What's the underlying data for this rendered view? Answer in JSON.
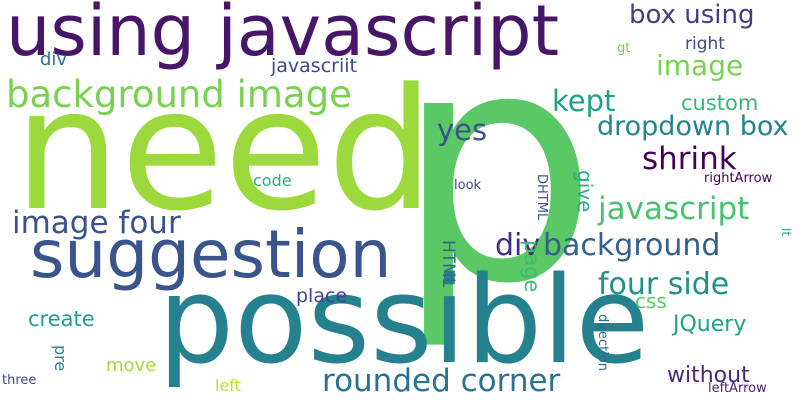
{
  "words": [
    {
      "text": "p",
      "color": "#5ac864"
    },
    {
      "text": "need",
      "color": "#9bd93c"
    },
    {
      "text": "possible",
      "color": "#26818e"
    },
    {
      "text": "using javascript",
      "color": "#481668"
    },
    {
      "text": "suggestion",
      "color": "#3a548c"
    },
    {
      "text": "background image",
      "color": "#7ad151"
    },
    {
      "text": "rounded corner",
      "color": "#2c728e"
    },
    {
      "text": "dropdown box",
      "color": "#25858e"
    },
    {
      "text": "background",
      "color": "#34608d"
    },
    {
      "text": "image four",
      "color": "#3b528b"
    },
    {
      "text": "javascript",
      "color": "#4ac16d"
    },
    {
      "text": "four side",
      "color": "#21918c"
    },
    {
      "text": "shrink",
      "color": "#440154"
    },
    {
      "text": "div",
      "color": "#472d7b"
    },
    {
      "text": "box using",
      "color": "#433d84"
    },
    {
      "text": "image",
      "color": "#7ad151"
    },
    {
      "text": "kept",
      "color": "#1fa088"
    },
    {
      "text": "yes",
      "color": "#3b528b"
    },
    {
      "text": "JQuery",
      "color": "#1fa188"
    },
    {
      "text": "custom",
      "color": "#35b779"
    },
    {
      "text": "css",
      "color": "#5ec962"
    },
    {
      "text": "create",
      "color": "#1f9e89"
    },
    {
      "text": "without",
      "color": "#482878"
    },
    {
      "text": "page",
      "color": "#3dbc74"
    },
    {
      "text": "give",
      "color": "#2ab07f"
    },
    {
      "text": "HTML",
      "color": "#31688e"
    },
    {
      "text": "place",
      "color": "#414487"
    },
    {
      "text": "javascriit",
      "color": "#3e4989"
    },
    {
      "text": "div",
      "color": "#2a788e"
    },
    {
      "text": "move",
      "color": "#a5db36"
    },
    {
      "text": "right",
      "color": "#3e4a89"
    },
    {
      "text": "code",
      "color": "#29af7f"
    },
    {
      "text": "rightArrow",
      "color": "#440154"
    },
    {
      "text": "look",
      "color": "#3e4989"
    },
    {
      "text": "DHTML",
      "color": "#3b528b"
    },
    {
      "text": "pre",
      "color": "#287d8e"
    },
    {
      "text": "left",
      "color": "#c2df23"
    },
    {
      "text": "three",
      "color": "#3e4989"
    },
    {
      "text": "direction",
      "color": "#2f6b8e"
    },
    {
      "text": "leftArrow",
      "color": "#482677"
    },
    {
      "text": "gt",
      "color": "#73d056"
    },
    {
      "text": "lt",
      "color": "#22a785"
    }
  ]
}
